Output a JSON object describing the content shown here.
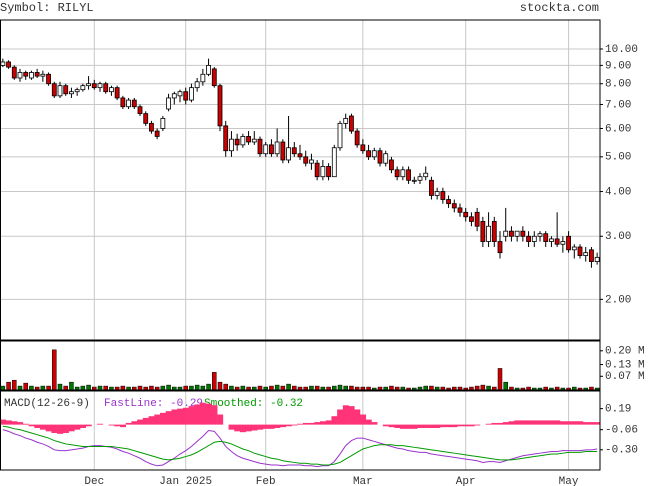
{
  "chart_data": [
    {
      "type": "candlestick",
      "title": "Symbol: RILYL",
      "source": "stockta.com",
      "log_scale": true,
      "grid": true,
      "up_color": "#ffffff",
      "down_color": "#cc0000",
      "categories": [
        null,
        null,
        null,
        null,
        null,
        null,
        null,
        null,
        null,
        null,
        null,
        null,
        null,
        null,
        null,
        null,
        "Dec",
        null,
        null,
        null,
        null,
        null,
        null,
        null,
        null,
        null,
        null,
        null,
        null,
        null,
        null,
        null,
        "Jan 2025",
        null,
        null,
        null,
        null,
        null,
        null,
        null,
        null,
        null,
        null,
        null,
        null,
        null,
        "Feb",
        null,
        null,
        null,
        null,
        null,
        null,
        null,
        null,
        null,
        null,
        null,
        null,
        null,
        null,
        null,
        null,
        "Mar",
        null,
        null,
        null,
        null,
        null,
        null,
        null,
        null,
        null,
        null,
        null,
        null,
        null,
        null,
        null,
        null,
        null,
        "Apr",
        null,
        null,
        null,
        null,
        null,
        null,
        null,
        null,
        null,
        null,
        null,
        null,
        null,
        null,
        null,
        null,
        null,
        "May",
        null,
        null,
        null,
        null,
        null
      ],
      "ohlc": [
        [
          9.0,
          9.4,
          8.9,
          9.2
        ],
        [
          9.2,
          9.3,
          8.8,
          8.9
        ],
        [
          8.9,
          9.0,
          8.2,
          8.3
        ],
        [
          8.3,
          8.8,
          8.1,
          8.6
        ],
        [
          8.6,
          8.7,
          8.2,
          8.4
        ],
        [
          8.3,
          8.7,
          8.2,
          8.6
        ],
        [
          8.6,
          8.8,
          8.3,
          8.4
        ],
        [
          8.4,
          8.7,
          8.1,
          8.5
        ],
        [
          8.5,
          8.6,
          7.9,
          8.0
        ],
        [
          8.0,
          8.1,
          7.3,
          7.4
        ],
        [
          7.4,
          8.1,
          7.3,
          7.9
        ],
        [
          7.9,
          8.0,
          7.4,
          7.5
        ],
        [
          7.5,
          7.8,
          7.3,
          7.6
        ],
        [
          7.6,
          7.8,
          7.4,
          7.7
        ],
        [
          7.7,
          8.0,
          7.6,
          7.9
        ],
        [
          7.9,
          8.4,
          7.7,
          8.0
        ],
        [
          8.0,
          8.2,
          7.7,
          7.8
        ],
        [
          7.8,
          8.1,
          7.6,
          8.0
        ],
        [
          8.0,
          8.1,
          7.5,
          7.6
        ],
        [
          7.6,
          7.9,
          7.4,
          7.8
        ],
        [
          7.8,
          7.9,
          7.2,
          7.3
        ],
        [
          7.3,
          7.4,
          6.8,
          6.9
        ],
        [
          6.9,
          7.3,
          6.8,
          7.2
        ],
        [
          7.2,
          7.3,
          6.8,
          6.9
        ],
        [
          6.9,
          7.0,
          6.5,
          6.6
        ],
        [
          6.6,
          6.7,
          6.1,
          6.2
        ],
        [
          6.2,
          6.3,
          5.8,
          5.9
        ],
        [
          5.9,
          6.0,
          5.6,
          5.7
        ],
        [
          6.0,
          6.5,
          5.9,
          6.4
        ],
        [
          6.8,
          7.5,
          6.7,
          7.3
        ],
        [
          7.3,
          7.6,
          7.0,
          7.5
        ],
        [
          7.4,
          7.7,
          7.1,
          7.6
        ],
        [
          7.6,
          7.8,
          7.0,
          7.2
        ],
        [
          7.2,
          8.0,
          7.1,
          7.8
        ],
        [
          7.8,
          8.3,
          7.6,
          8.1
        ],
        [
          8.1,
          8.8,
          7.9,
          8.5
        ],
        [
          8.5,
          9.4,
          8.4,
          9.0
        ],
        [
          8.8,
          8.9,
          7.8,
          7.9
        ],
        [
          7.9,
          8.0,
          5.9,
          6.1
        ],
        [
          6.1,
          6.3,
          5.0,
          5.2
        ],
        [
          5.2,
          5.9,
          5.0,
          5.6
        ],
        [
          5.6,
          5.8,
          5.2,
          5.4
        ],
        [
          5.4,
          5.8,
          5.3,
          5.7
        ],
        [
          5.7,
          5.9,
          5.4,
          5.5
        ],
        [
          5.5,
          5.9,
          5.4,
          5.6
        ],
        [
          5.6,
          5.7,
          5.0,
          5.1
        ],
        [
          5.1,
          5.5,
          5.0,
          5.4
        ],
        [
          5.4,
          5.6,
          5.0,
          5.1
        ],
        [
          5.1,
          6.0,
          5.0,
          5.5
        ],
        [
          5.5,
          5.6,
          4.8,
          4.9
        ],
        [
          4.9,
          6.5,
          4.8,
          5.3
        ],
        [
          5.3,
          5.5,
          5.0,
          5.1
        ],
        [
          5.1,
          5.4,
          4.9,
          5.0
        ],
        [
          5.0,
          5.2,
          4.7,
          4.8
        ],
        [
          4.8,
          5.1,
          4.6,
          4.9
        ],
        [
          4.8,
          4.9,
          4.3,
          4.4
        ],
        [
          4.4,
          4.9,
          4.3,
          4.7
        ],
        [
          4.7,
          4.8,
          4.3,
          4.4
        ],
        [
          4.4,
          5.4,
          4.4,
          5.3
        ],
        [
          5.3,
          6.3,
          5.2,
          6.2
        ],
        [
          6.2,
          6.6,
          6.0,
          6.4
        ],
        [
          6.5,
          6.6,
          5.8,
          5.9
        ],
        [
          5.9,
          6.0,
          5.3,
          5.4
        ],
        [
          5.4,
          5.6,
          5.1,
          5.2
        ],
        [
          5.2,
          5.4,
          4.9,
          5.0
        ],
        [
          5.0,
          5.3,
          4.9,
          5.2
        ],
        [
          5.2,
          5.3,
          4.7,
          4.8
        ],
        [
          4.8,
          5.2,
          4.7,
          5.1
        ],
        [
          4.9,
          5.0,
          4.5,
          4.6
        ],
        [
          4.6,
          4.7,
          4.3,
          4.4
        ],
        [
          4.4,
          4.7,
          4.3,
          4.6
        ],
        [
          4.6,
          4.7,
          4.2,
          4.3
        ],
        [
          4.3,
          4.4,
          4.2,
          4.3
        ],
        [
          4.3,
          4.5,
          4.2,
          4.4
        ],
        [
          4.4,
          4.7,
          4.3,
          4.5
        ],
        [
          4.3,
          4.4,
          3.8,
          3.9
        ],
        [
          3.9,
          4.1,
          3.8,
          4.0
        ],
        [
          4.0,
          4.1,
          3.7,
          3.8
        ],
        [
          3.8,
          3.9,
          3.6,
          3.7
        ],
        [
          3.7,
          3.8,
          3.5,
          3.6
        ],
        [
          3.6,
          3.7,
          3.4,
          3.5
        ],
        [
          3.5,
          3.6,
          3.3,
          3.4
        ],
        [
          3.4,
          3.5,
          3.2,
          3.3
        ],
        [
          3.5,
          3.6,
          3.1,
          3.2
        ],
        [
          3.3,
          3.4,
          2.8,
          2.9
        ],
        [
          2.9,
          3.5,
          2.8,
          3.2
        ],
        [
          3.3,
          3.4,
          2.8,
          2.9
        ],
        [
          2.9,
          3.1,
          2.6,
          2.7
        ],
        [
          3.0,
          3.6,
          2.9,
          3.1
        ],
        [
          3.1,
          3.2,
          2.9,
          3.0
        ],
        [
          3.0,
          3.1,
          2.9,
          3.1
        ],
        [
          3.1,
          3.2,
          2.9,
          3.0
        ],
        [
          3.0,
          3.1,
          2.8,
          2.9
        ],
        [
          2.9,
          3.1,
          2.8,
          3.0
        ],
        [
          3.0,
          3.1,
          2.9,
          3.05
        ],
        [
          3.05,
          3.1,
          2.8,
          2.9
        ],
        [
          2.9,
          3.0,
          2.8,
          2.95
        ],
        [
          2.95,
          3.5,
          2.8,
          2.85
        ],
        [
          2.85,
          3.0,
          2.7,
          2.9
        ],
        [
          3.0,
          3.1,
          2.7,
          2.75
        ],
        [
          2.75,
          2.85,
          2.6,
          2.8
        ],
        [
          2.8,
          2.85,
          2.6,
          2.65
        ],
        [
          2.65,
          2.8,
          2.55,
          2.7
        ],
        [
          2.75,
          2.8,
          2.45,
          2.55
        ],
        [
          2.55,
          2.7,
          2.5,
          2.62
        ]
      ],
      "ylim": [
        1.54,
        12.05
      ],
      "yticks": [
        {
          "value": 10,
          "label": "10.00"
        },
        {
          "value": 9,
          "label": "9.00"
        },
        {
          "value": 8,
          "label": "8.00"
        },
        {
          "value": 7,
          "label": "7.00"
        },
        {
          "value": 6,
          "label": "6.00"
        },
        {
          "value": 5,
          "label": "5.00"
        },
        {
          "value": 4,
          "label": "4.00"
        },
        {
          "value": 3,
          "label": "3.00"
        },
        {
          "value": 2,
          "label": "2.00"
        }
      ]
    },
    {
      "type": "volume",
      "up_color": "#007700",
      "down_color": "#cc0000",
      "values": [
        0.02,
        0.04,
        0.05,
        0.02,
        0.035,
        0.02,
        0.015,
        0.02,
        0.02,
        0.205,
        0.03,
        0.02,
        0.04,
        0.015,
        0.02,
        0.025,
        0.015,
        0.02,
        0.02,
        0.015,
        0.015,
        0.02,
        0.015,
        0.015,
        0.02,
        0.015,
        0.02,
        0.015,
        0.02,
        0.025,
        0.015,
        0.015,
        0.02,
        0.02,
        0.025,
        0.02,
        0.03,
        0.09,
        0.04,
        0.03,
        0.02,
        0.015,
        0.02,
        0.015,
        0.015,
        0.02,
        0.015,
        0.02,
        0.025,
        0.02,
        0.03,
        0.02,
        0.015,
        0.015,
        0.02,
        0.02,
        0.015,
        0.015,
        0.02,
        0.025,
        0.02,
        0.02,
        0.015,
        0.015,
        0.015,
        0.01,
        0.015,
        0.015,
        0.02,
        0.015,
        0.015,
        0.01,
        0.01,
        0.015,
        0.02,
        0.02,
        0.015,
        0.015,
        0.01,
        0.015,
        0.015,
        0.01,
        0.015,
        0.02,
        0.025,
        0.02,
        0.015,
        0.11,
        0.04,
        0.015,
        0.01,
        0.01,
        0.015,
        0.01,
        0.01,
        0.015,
        0.01,
        0.015,
        0.01,
        0.01,
        0.015,
        0.01,
        0.01,
        0.015,
        0.01
      ],
      "ylim": [
        0,
        0.25
      ],
      "yticks": [
        {
          "value": 0.2,
          "label": "0.20 M"
        },
        {
          "value": 0.13,
          "label": "0.13 M"
        },
        {
          "value": 0.07,
          "label": "0.07 M"
        }
      ]
    },
    {
      "type": "macd",
      "title": "MACD(12-26-9)",
      "histogram_color": "#ff3377",
      "histogram": [
        0.06,
        0.05,
        0.04,
        0.03,
        0.01,
        -0.02,
        -0.04,
        -0.06,
        -0.08,
        -0.1,
        -0.11,
        -0.1,
        -0.08,
        -0.06,
        -0.04,
        -0.02,
        0.0,
        0.01,
        0.0,
        -0.01,
        -0.02,
        -0.03,
        0.02,
        0.04,
        0.06,
        0.08,
        0.1,
        0.12,
        0.14,
        0.16,
        0.18,
        0.19,
        0.2,
        0.22,
        0.24,
        0.26,
        0.25,
        0.23,
        0.12,
        0.0,
        -0.06,
        -0.08,
        -0.09,
        -0.08,
        -0.07,
        -0.06,
        -0.05,
        -0.05,
        -0.04,
        -0.03,
        -0.02,
        -0.01,
        0.01,
        0.02,
        0.02,
        0.03,
        0.04,
        0.05,
        0.1,
        0.18,
        0.23,
        0.22,
        0.18,
        0.12,
        0.06,
        0.03,
        0.0,
        -0.02,
        -0.03,
        -0.04,
        -0.05,
        -0.05,
        -0.05,
        -0.04,
        -0.04,
        -0.04,
        -0.04,
        -0.03,
        -0.03,
        -0.03,
        -0.02,
        -0.02,
        -0.02,
        -0.01,
        0.0,
        0.01,
        0.02,
        0.02,
        0.03,
        0.04,
        0.05,
        0.05,
        0.05,
        0.05,
        0.05,
        0.05,
        0.05,
        0.05,
        0.04,
        0.04,
        0.04,
        0.04,
        0.03,
        0.03,
        0.03
      ],
      "series": [
        {
          "name": "FastLine: -0.29",
          "color": "#9933cc",
          "values": [
            -0.06,
            -0.08,
            -0.11,
            -0.13,
            -0.16,
            -0.18,
            -0.21,
            -0.23,
            -0.26,
            -0.3,
            -0.31,
            -0.31,
            -0.3,
            -0.29,
            -0.28,
            -0.26,
            -0.25,
            -0.25,
            -0.26,
            -0.27,
            -0.29,
            -0.32,
            -0.34,
            -0.37,
            -0.4,
            -0.44,
            -0.47,
            -0.49,
            -0.48,
            -0.44,
            -0.4,
            -0.35,
            -0.31,
            -0.26,
            -0.2,
            -0.14,
            -0.07,
            -0.08,
            -0.16,
            -0.26,
            -0.32,
            -0.37,
            -0.4,
            -0.42,
            -0.44,
            -0.46,
            -0.47,
            -0.48,
            -0.48,
            -0.49,
            -0.48,
            -0.48,
            -0.48,
            -0.49,
            -0.49,
            -0.5,
            -0.49,
            -0.49,
            -0.44,
            -0.35,
            -0.25,
            -0.19,
            -0.16,
            -0.16,
            -0.18,
            -0.2,
            -0.22,
            -0.24,
            -0.26,
            -0.28,
            -0.29,
            -0.31,
            -0.32,
            -0.33,
            -0.33,
            -0.35,
            -0.36,
            -0.37,
            -0.38,
            -0.39,
            -0.4,
            -0.41,
            -0.42,
            -0.43,
            -0.45,
            -0.44,
            -0.44,
            -0.45,
            -0.43,
            -0.41,
            -0.39,
            -0.37,
            -0.36,
            -0.35,
            -0.34,
            -0.33,
            -0.32,
            -0.32,
            -0.31,
            -0.31,
            -0.31,
            -0.31,
            -0.3,
            -0.3,
            -0.29
          ]
        },
        {
          "name": "Smoothed: -0.32",
          "color": "#009900",
          "values": [
            -0.02,
            -0.03,
            -0.05,
            -0.06,
            -0.08,
            -0.1,
            -0.12,
            -0.14,
            -0.16,
            -0.19,
            -0.21,
            -0.23,
            -0.24,
            -0.25,
            -0.26,
            -0.26,
            -0.26,
            -0.26,
            -0.26,
            -0.26,
            -0.27,
            -0.28,
            -0.29,
            -0.31,
            -0.33,
            -0.35,
            -0.37,
            -0.39,
            -0.41,
            -0.42,
            -0.41,
            -0.4,
            -0.38,
            -0.36,
            -0.33,
            -0.29,
            -0.25,
            -0.21,
            -0.2,
            -0.21,
            -0.23,
            -0.26,
            -0.29,
            -0.31,
            -0.34,
            -0.36,
            -0.38,
            -0.4,
            -0.41,
            -0.43,
            -0.44,
            -0.45,
            -0.46,
            -0.46,
            -0.47,
            -0.47,
            -0.48,
            -0.48,
            -0.47,
            -0.45,
            -0.41,
            -0.37,
            -0.33,
            -0.29,
            -0.27,
            -0.25,
            -0.24,
            -0.24,
            -0.24,
            -0.25,
            -0.25,
            -0.26,
            -0.27,
            -0.28,
            -0.29,
            -0.3,
            -0.31,
            -0.32,
            -0.33,
            -0.34,
            -0.35,
            -0.36,
            -0.37,
            -0.38,
            -0.39,
            -0.4,
            -0.41,
            -0.42,
            -0.42,
            -0.42,
            -0.41,
            -0.4,
            -0.39,
            -0.38,
            -0.37,
            -0.36,
            -0.35,
            -0.35,
            -0.34,
            -0.33,
            -0.33,
            -0.33,
            -0.32,
            -0.32,
            -0.32
          ]
        }
      ],
      "ylim": [
        -0.54,
        0.4
      ],
      "yticks": [
        0.19,
        -0.06,
        {
          "value": -0.3,
          "label": "-0.30"
        }
      ]
    }
  ]
}
